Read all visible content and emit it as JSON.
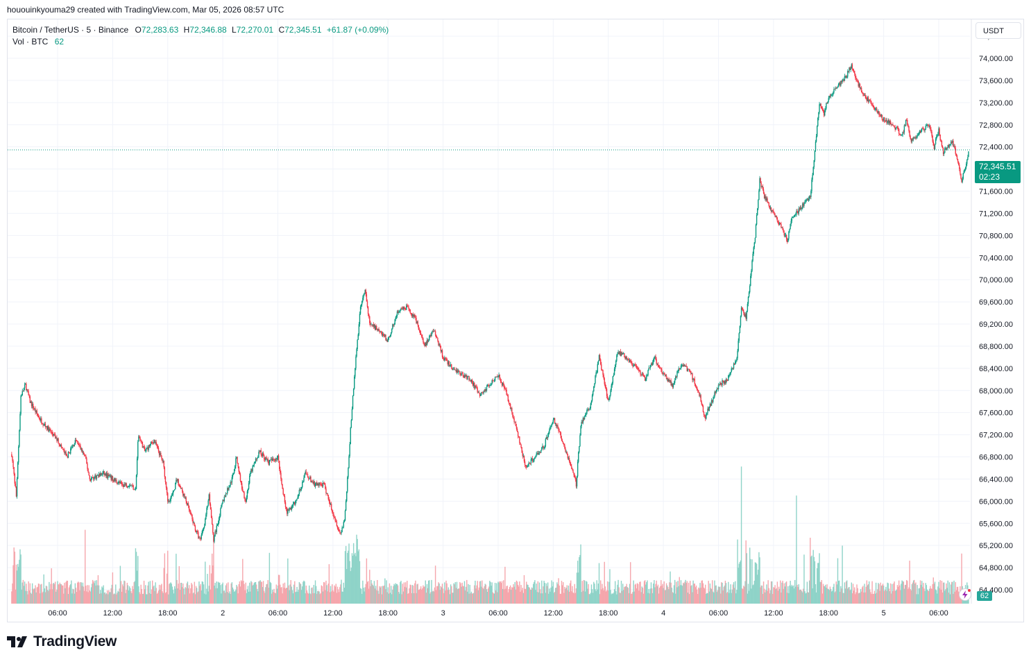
{
  "header": {
    "credit": "hououinkyouma29 created with TradingView.com, Mar 05, 2026 08:57 UTC"
  },
  "legend": {
    "symbol": "Bitcoin / TetherUS · 5 · Binance",
    "open_label": "O",
    "open": "72,283.63",
    "high_label": "H",
    "high": "72,346.88",
    "low_label": "L",
    "low": "72,270.01",
    "close_label": "C",
    "close": "72,345.51",
    "change": "+61.87 (+0.09%)",
    "volume_label": "Vol · BTC",
    "volume": "62"
  },
  "currency": "USDT",
  "price_badge": {
    "price": "72,345.51",
    "countdown": "02:23"
  },
  "volume_badge": "62",
  "brand": "TradingView",
  "colors": {
    "up": "#089981",
    "down": "#f23645",
    "vol_up": "#8fd3c8",
    "vol_down": "#f5a6ac",
    "grid": "#f0f3fa"
  },
  "chart_data": {
    "type": "candlestick",
    "interval": "5",
    "y_ticks": [
      64400,
      64800,
      65200,
      65600,
      66000,
      66400,
      66800,
      67200,
      67600,
      68000,
      68400,
      68800,
      69200,
      69600,
      70000,
      70400,
      70800,
      71200,
      71600,
      72000,
      72400,
      72800,
      73200,
      73600,
      74000,
      74400
    ],
    "y_tick_labels": [
      "64,400.00",
      "64,800.00",
      "65,200.00",
      "65,600.00",
      "66,000.00",
      "66,400.00",
      "66,800.00",
      "67,200.00",
      "67,600.00",
      "68,000.00",
      "68,400.00",
      "68,800.00",
      "69,200.00",
      "69,600.00",
      "70,000.00",
      "70,400.00",
      "70,800.00",
      "71,200.00",
      "71,600.00",
      "72,000.00",
      "72,400.00",
      "72,800.00",
      "73,200.00",
      "73,600.00",
      "74,000.00",
      "74,400.00"
    ],
    "ylim": [
      64100,
      74800
    ],
    "x_ticks": [
      {
        "label": "06:00",
        "hours": 6
      },
      {
        "label": "12:00",
        "hours": 12
      },
      {
        "label": "18:00",
        "hours": 18
      },
      {
        "label": "2",
        "hours": 24
      },
      {
        "label": "06:00",
        "hours": 30
      },
      {
        "label": "12:00",
        "hours": 36
      },
      {
        "label": "18:00",
        "hours": 42
      },
      {
        "label": "3",
        "hours": 48
      },
      {
        "label": "06:00",
        "hours": 54
      },
      {
        "label": "12:00",
        "hours": 60
      },
      {
        "label": "18:00",
        "hours": 66
      },
      {
        "label": "4",
        "hours": 72
      },
      {
        "label": "06:00",
        "hours": 78
      },
      {
        "label": "12:00",
        "hours": 84
      },
      {
        "label": "18:00",
        "hours": 90
      },
      {
        "label": "5",
        "hours": 96
      },
      {
        "label": "06:00",
        "hours": 102
      }
    ],
    "last_price": 72345.51,
    "price_path": [
      [
        1.0,
        66850
      ],
      [
        1.5,
        66100
      ],
      [
        2.0,
        67900
      ],
      [
        2.5,
        68100
      ],
      [
        3.0,
        67800
      ],
      [
        4.0,
        67500
      ],
      [
        5.0,
        67300
      ],
      [
        6.0,
        67100
      ],
      [
        7.0,
        66800
      ],
      [
        8.0,
        67100
      ],
      [
        9.0,
        66800
      ],
      [
        9.5,
        66400
      ],
      [
        11.0,
        66500
      ],
      [
        12.0,
        66400
      ],
      [
        13.0,
        66300
      ],
      [
        14.0,
        66300
      ],
      [
        14.5,
        66200
      ],
      [
        14.8,
        67200
      ],
      [
        15.5,
        66900
      ],
      [
        16.5,
        67100
      ],
      [
        17.5,
        66700
      ],
      [
        18.0,
        66000
      ],
      [
        18.5,
        66100
      ],
      [
        19.0,
        66400
      ],
      [
        20.0,
        66000
      ],
      [
        21.0,
        65500
      ],
      [
        21.5,
        65300
      ],
      [
        22.0,
        65600
      ],
      [
        22.5,
        66100
      ],
      [
        23.0,
        65300
      ],
      [
        24.0,
        66000
      ],
      [
        25.0,
        66400
      ],
      [
        25.5,
        66800
      ],
      [
        26.0,
        66300
      ],
      [
        26.5,
        66000
      ],
      [
        27.0,
        66500
      ],
      [
        28.0,
        66900
      ],
      [
        29.0,
        66700
      ],
      [
        30.0,
        66800
      ],
      [
        30.5,
        66200
      ],
      [
        31.0,
        65800
      ],
      [
        32.0,
        66000
      ],
      [
        33.0,
        66500
      ],
      [
        34.0,
        66300
      ],
      [
        35.0,
        66300
      ],
      [
        36.0,
        65800
      ],
      [
        36.8,
        65400
      ],
      [
        37.3,
        65700
      ],
      [
        38.0,
        67500
      ],
      [
        38.5,
        68600
      ],
      [
        39.0,
        69500
      ],
      [
        39.5,
        69800
      ],
      [
        40.0,
        69200
      ],
      [
        41.0,
        69100
      ],
      [
        42.0,
        68900
      ],
      [
        43.0,
        69400
      ],
      [
        44.0,
        69500
      ],
      [
        45.0,
        69300
      ],
      [
        46.0,
        68800
      ],
      [
        47.0,
        69100
      ],
      [
        48.0,
        68600
      ],
      [
        49.0,
        68400
      ],
      [
        50.0,
        68300
      ],
      [
        51.0,
        68200
      ],
      [
        52.0,
        67900
      ],
      [
        53.0,
        68100
      ],
      [
        54.0,
        68300
      ],
      [
        55.0,
        67900
      ],
      [
        56.0,
        67300
      ],
      [
        57.0,
        66600
      ],
      [
        58.0,
        66800
      ],
      [
        59.0,
        67000
      ],
      [
        60.0,
        67500
      ],
      [
        61.0,
        67100
      ],
      [
        62.0,
        66600
      ],
      [
        62.5,
        66300
      ],
      [
        63.0,
        67400
      ],
      [
        64.0,
        67700
      ],
      [
        65.0,
        68600
      ],
      [
        66.0,
        67800
      ],
      [
        67.0,
        68700
      ],
      [
        68.0,
        68600
      ],
      [
        69.0,
        68400
      ],
      [
        70.0,
        68200
      ],
      [
        71.0,
        68600
      ],
      [
        72.0,
        68300
      ],
      [
        73.0,
        68100
      ],
      [
        74.0,
        68500
      ],
      [
        75.0,
        68300
      ],
      [
        76.0,
        67900
      ],
      [
        76.5,
        67500
      ],
      [
        77.0,
        67700
      ],
      [
        78.0,
        68100
      ],
      [
        79.0,
        68200
      ],
      [
        80.0,
        68600
      ],
      [
        80.5,
        69500
      ],
      [
        81.0,
        69300
      ],
      [
        82.0,
        70800
      ],
      [
        82.5,
        71800
      ],
      [
        83.0,
        71500
      ],
      [
        84.0,
        71200
      ],
      [
        85.0,
        70900
      ],
      [
        85.5,
        70700
      ],
      [
        86.0,
        71100
      ],
      [
        87.0,
        71300
      ],
      [
        88.0,
        71500
      ],
      [
        88.5,
        72300
      ],
      [
        89.0,
        73200
      ],
      [
        89.5,
        73000
      ],
      [
        90.0,
        73300
      ],
      [
        91.0,
        73500
      ],
      [
        92.0,
        73700
      ],
      [
        92.5,
        73900
      ],
      [
        93.0,
        73600
      ],
      [
        94.0,
        73300
      ],
      [
        95.0,
        73100
      ],
      [
        96.0,
        72900
      ],
      [
        97.0,
        72800
      ],
      [
        98.0,
        72600
      ],
      [
        98.5,
        72900
      ],
      [
        99.0,
        72500
      ],
      [
        100.0,
        72700
      ],
      [
        101.0,
        72800
      ],
      [
        101.5,
        72400
      ],
      [
        102.0,
        72700
      ],
      [
        102.5,
        72300
      ],
      [
        103.5,
        72500
      ],
      [
        104.0,
        72200
      ],
      [
        104.5,
        71800
      ],
      [
        105.0,
        72100
      ],
      [
        105.3,
        72345.51
      ]
    ],
    "volume_spikes": [
      {
        "hours": 14.5,
        "vol": 2.1
      },
      {
        "hours": 9.0,
        "vol": 2.8
      },
      {
        "hours": 38.5,
        "vol": 1.8
      },
      {
        "hours": 80.5,
        "vol": 5.2
      },
      {
        "hours": 81.0,
        "vol": 2.4
      },
      {
        "hours": 86.5,
        "vol": 4.1
      },
      {
        "hours": 88.0,
        "vol": 2.5
      },
      {
        "hours": 91.5,
        "vol": 2.2
      },
      {
        "hours": 104.5,
        "vol": 1.9
      }
    ]
  }
}
